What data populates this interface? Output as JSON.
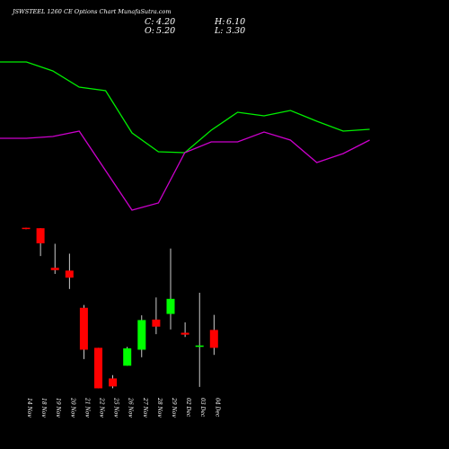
{
  "chart_data": {
    "type": "candlestick",
    "title": "JSWSTEEL 1260 CE Options Chart MunafaSutra.com",
    "ohlc": {
      "open_label": "O:",
      "open": "5.20",
      "high_label": "H:",
      "high": "6.10",
      "close_label": "C:",
      "close": "4.20",
      "low_label": "L:",
      "low": "3.30"
    },
    "x_labels": [
      "14 Nov",
      "18 Nov",
      "19 Nov",
      "20 Nov",
      "21 Nov",
      "22 Nov",
      "25 Nov",
      "26 Nov",
      "27 Nov",
      "28 Nov",
      "29 Nov",
      "02 Dec",
      "03 Dec",
      "04 Dec"
    ],
    "price_range": [
      3.0,
      40.0
    ],
    "candles": [
      {
        "date": "14 Nov",
        "open": 37.4,
        "high": 37.4,
        "low": 37.1,
        "close": 37.2
      },
      {
        "date": "18 Nov",
        "open": 37.3,
        "high": 37.3,
        "low": 31.4,
        "close": 34.1
      },
      {
        "date": "19 Nov",
        "open": 28.9,
        "high": 34.0,
        "low": 27.6,
        "close": 28.4
      },
      {
        "date": "20 Nov",
        "open": 28.3,
        "high": 31.9,
        "low": 24.4,
        "close": 26.8
      },
      {
        "date": "21 Nov",
        "open": 20.4,
        "high": 21.0,
        "low": 9.5,
        "close": 11.5
      },
      {
        "date": "22 Nov",
        "open": 11.9,
        "high": 11.9,
        "low": 3.3,
        "close": 3.3
      },
      {
        "date": "25 Nov",
        "open": 5.4,
        "high": 6.1,
        "low": 3.3,
        "close": 3.7
      },
      {
        "date": "26 Nov",
        "open": 8.1,
        "high": 12.1,
        "low": 8.1,
        "close": 11.8
      },
      {
        "date": "27 Nov",
        "open": 11.5,
        "high": 18.8,
        "low": 9.9,
        "close": 17.8
      },
      {
        "date": "28 Nov",
        "open": 17.9,
        "high": 22.6,
        "low": 14.8,
        "close": 16.4
      },
      {
        "date": "29 Nov",
        "open": 19.1,
        "high": 33.0,
        "low": 15.8,
        "close": 22.3
      },
      {
        "date": "02 Dec",
        "open": 15.1,
        "high": 17.3,
        "low": 14.2,
        "close": 14.7
      },
      {
        "date": "03 Dec",
        "open": 12.1,
        "high": 23.6,
        "low": 3.6,
        "close": 12.4
      },
      {
        "date": "04 Dec",
        "open": 15.7,
        "high": 18.9,
        "low": 10.4,
        "close": 11.9
      }
    ],
    "line_series": [
      {
        "color": "#00ee00",
        "values": [
          69,
          69,
          79,
          97,
          101,
          148,
          169,
          170,
          145,
          125,
          129,
          123,
          135,
          146,
          144
        ]
      },
      {
        "color": "#cc00cc",
        "values": [
          154,
          154,
          152,
          146,
          190,
          234,
          226,
          170,
          158,
          158,
          147,
          156,
          181,
          171,
          156
        ]
      }
    ],
    "colors": {
      "up": "#00ff00",
      "down": "#ff0000",
      "wick": "#ffffff",
      "flat": "#ffffff"
    }
  }
}
